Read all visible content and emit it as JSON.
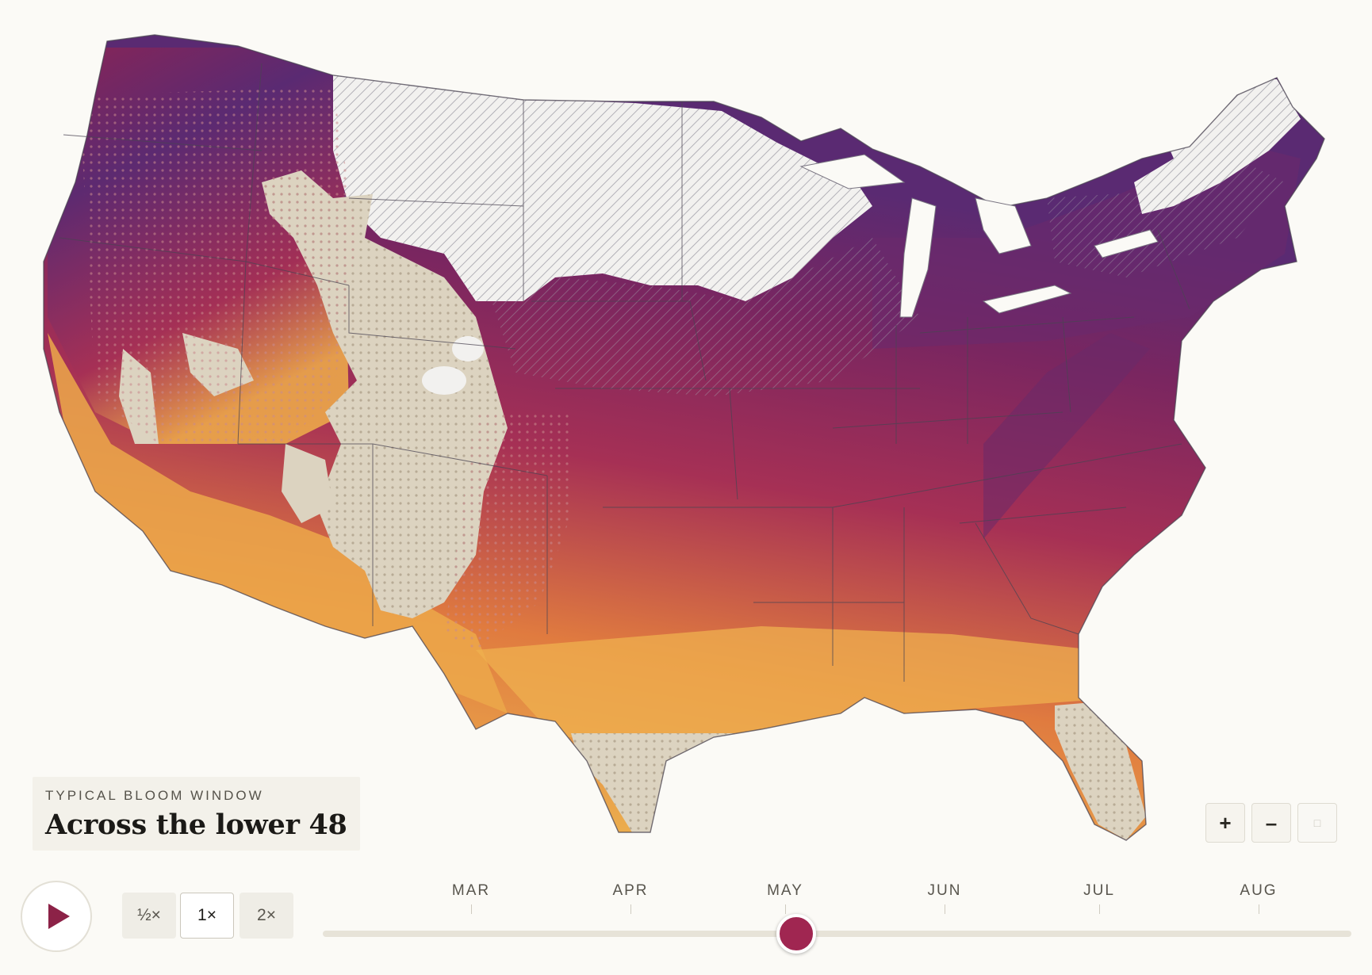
{
  "title_card": {
    "eyebrow": "TYPICAL BLOOM WINDOW",
    "headline": "Across the lower 48"
  },
  "map": {
    "colors": {
      "background": "#fbfaf6",
      "no_bloom": "#dcd3c0",
      "not_yet": "#f2f1ef",
      "hatch": "#9c9aa3",
      "early": "#ecb04e",
      "mid": "#e07b3f",
      "late": "#a63055",
      "latest": "#5a2a72",
      "borders": "#4a4452"
    },
    "legend_states": [
      "bloom-early",
      "bloom-mid",
      "bloom-late",
      "bloom-latest",
      "no-bloom",
      "not-yet"
    ]
  },
  "zoom": {
    "zoom_in_label": "+",
    "zoom_out_label": "–",
    "reset_label": "□"
  },
  "playback": {
    "play_icon": "play-icon",
    "speeds": [
      {
        "label": "½×",
        "active": false
      },
      {
        "label": "1×",
        "active": true
      },
      {
        "label": "2×",
        "active": false
      }
    ]
  },
  "timeline": {
    "months": [
      "MAR",
      "APR",
      "MAY",
      "JUN",
      "JUL",
      "AUG"
    ],
    "current_position": 0.46
  }
}
